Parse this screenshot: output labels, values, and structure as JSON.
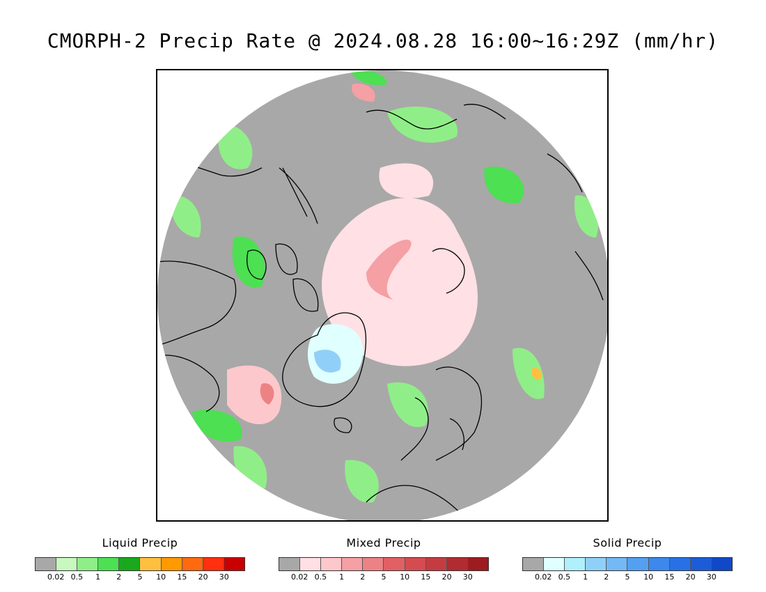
{
  "title": "CMORPH-2 Precip Rate @ 2024.08.28 16:00~16:29Z (mm/hr)",
  "map": {
    "projection": "north-polar-stereographic",
    "colors": {
      "background_precip_none": "#a8a8a8",
      "outside_disk": "#ffffff",
      "coastline": "#000000"
    }
  },
  "legends": [
    {
      "id": "liquid",
      "title": "Liquid Precip",
      "colors": [
        "#a8a8a8",
        "#c8f8c0",
        "#90ee88",
        "#4ce052",
        "#1aa81e",
        "#ffc040",
        "#ff9a00",
        "#ff6a10",
        "#ff3010",
        "#c80000"
      ],
      "ticks": [
        "0.02",
        "0.5",
        "1",
        "2",
        "5",
        "10",
        "15",
        "20",
        "30"
      ]
    },
    {
      "id": "mixed",
      "title": "Mixed Precip",
      "colors": [
        "#a8a8a8",
        "#ffe0e4",
        "#fcc8cc",
        "#f4a0a4",
        "#ec8284",
        "#e06064",
        "#d44c50",
        "#c43c40",
        "#b02c30",
        "#9c1c20"
      ],
      "ticks": [
        "0.02",
        "0.5",
        "1",
        "2",
        "5",
        "10",
        "15",
        "20",
        "30"
      ]
    },
    {
      "id": "solid",
      "title": "Solid Precip",
      "colors": [
        "#a8a8a8",
        "#e0ffff",
        "#b0f0fa",
        "#90d0f8",
        "#74b8f4",
        "#54a0f0",
        "#3c88ec",
        "#2870e4",
        "#1c5cd8",
        "#1048c8"
      ],
      "ticks": [
        "0.02",
        "0.5",
        "1",
        "2",
        "5",
        "10",
        "15",
        "20",
        "30"
      ]
    }
  ]
}
